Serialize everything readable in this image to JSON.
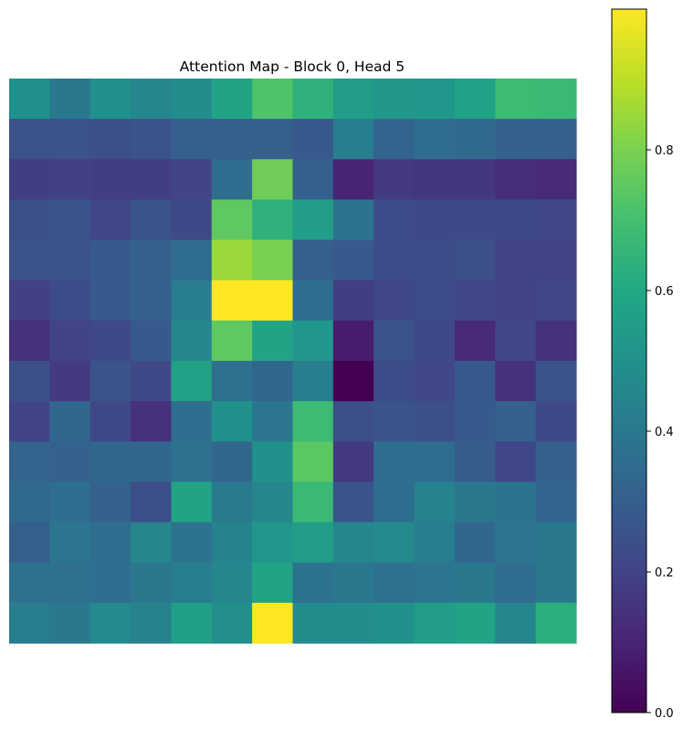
{
  "chart_data": {
    "type": "heatmap",
    "title": "Attention Map - Block 0, Head 5",
    "xlabel": "",
    "ylabel": "",
    "axes_visible": false,
    "grid": false,
    "colormap": "viridis",
    "colorbar": {
      "range": [
        0,
        1
      ],
      "ticks": [
        0.0,
        0.2,
        0.4,
        0.6,
        0.8
      ],
      "tick_labels": [
        "0.0",
        "0.2",
        "0.4",
        "0.6",
        "0.8"
      ],
      "placement": "right"
    },
    "rows": 14,
    "cols": 14,
    "values": [
      [
        0.5,
        0.4,
        0.5,
        0.46,
        0.48,
        0.58,
        0.72,
        0.64,
        0.55,
        0.53,
        0.52,
        0.57,
        0.68,
        0.67
      ],
      [
        0.25,
        0.25,
        0.24,
        0.26,
        0.3,
        0.3,
        0.3,
        0.28,
        0.42,
        0.32,
        0.35,
        0.34,
        0.31,
        0.3
      ],
      [
        0.18,
        0.19,
        0.18,
        0.18,
        0.2,
        0.35,
        0.78,
        0.3,
        0.1,
        0.17,
        0.16,
        0.16,
        0.13,
        0.12
      ],
      [
        0.24,
        0.26,
        0.21,
        0.26,
        0.22,
        0.75,
        0.64,
        0.55,
        0.38,
        0.23,
        0.22,
        0.22,
        0.22,
        0.21
      ],
      [
        0.25,
        0.25,
        0.28,
        0.31,
        0.35,
        0.85,
        0.8,
        0.3,
        0.28,
        0.23,
        0.23,
        0.24,
        0.2,
        0.2
      ],
      [
        0.19,
        0.23,
        0.28,
        0.31,
        0.42,
        1.0,
        1.0,
        0.36,
        0.18,
        0.21,
        0.23,
        0.21,
        0.2,
        0.21
      ],
      [
        0.14,
        0.2,
        0.22,
        0.28,
        0.46,
        0.75,
        0.58,
        0.52,
        0.08,
        0.26,
        0.22,
        0.12,
        0.21,
        0.14
      ],
      [
        0.24,
        0.17,
        0.26,
        0.22,
        0.57,
        0.37,
        0.33,
        0.42,
        0.0,
        0.23,
        0.21,
        0.28,
        0.14,
        0.26
      ],
      [
        0.2,
        0.33,
        0.22,
        0.14,
        0.36,
        0.5,
        0.39,
        0.68,
        0.24,
        0.26,
        0.24,
        0.28,
        0.31,
        0.22
      ],
      [
        0.32,
        0.31,
        0.33,
        0.33,
        0.37,
        0.33,
        0.5,
        0.74,
        0.17,
        0.36,
        0.35,
        0.29,
        0.21,
        0.3
      ],
      [
        0.34,
        0.36,
        0.31,
        0.24,
        0.58,
        0.41,
        0.46,
        0.67,
        0.26,
        0.36,
        0.44,
        0.4,
        0.38,
        0.32
      ],
      [
        0.3,
        0.39,
        0.36,
        0.45,
        0.38,
        0.44,
        0.52,
        0.55,
        0.46,
        0.47,
        0.42,
        0.33,
        0.39,
        0.4
      ],
      [
        0.37,
        0.37,
        0.36,
        0.4,
        0.42,
        0.46,
        0.58,
        0.38,
        0.4,
        0.37,
        0.39,
        0.4,
        0.35,
        0.4
      ],
      [
        0.42,
        0.4,
        0.47,
        0.44,
        0.56,
        0.49,
        1.0,
        0.48,
        0.48,
        0.5,
        0.55,
        0.58,
        0.45,
        0.63
      ]
    ]
  }
}
